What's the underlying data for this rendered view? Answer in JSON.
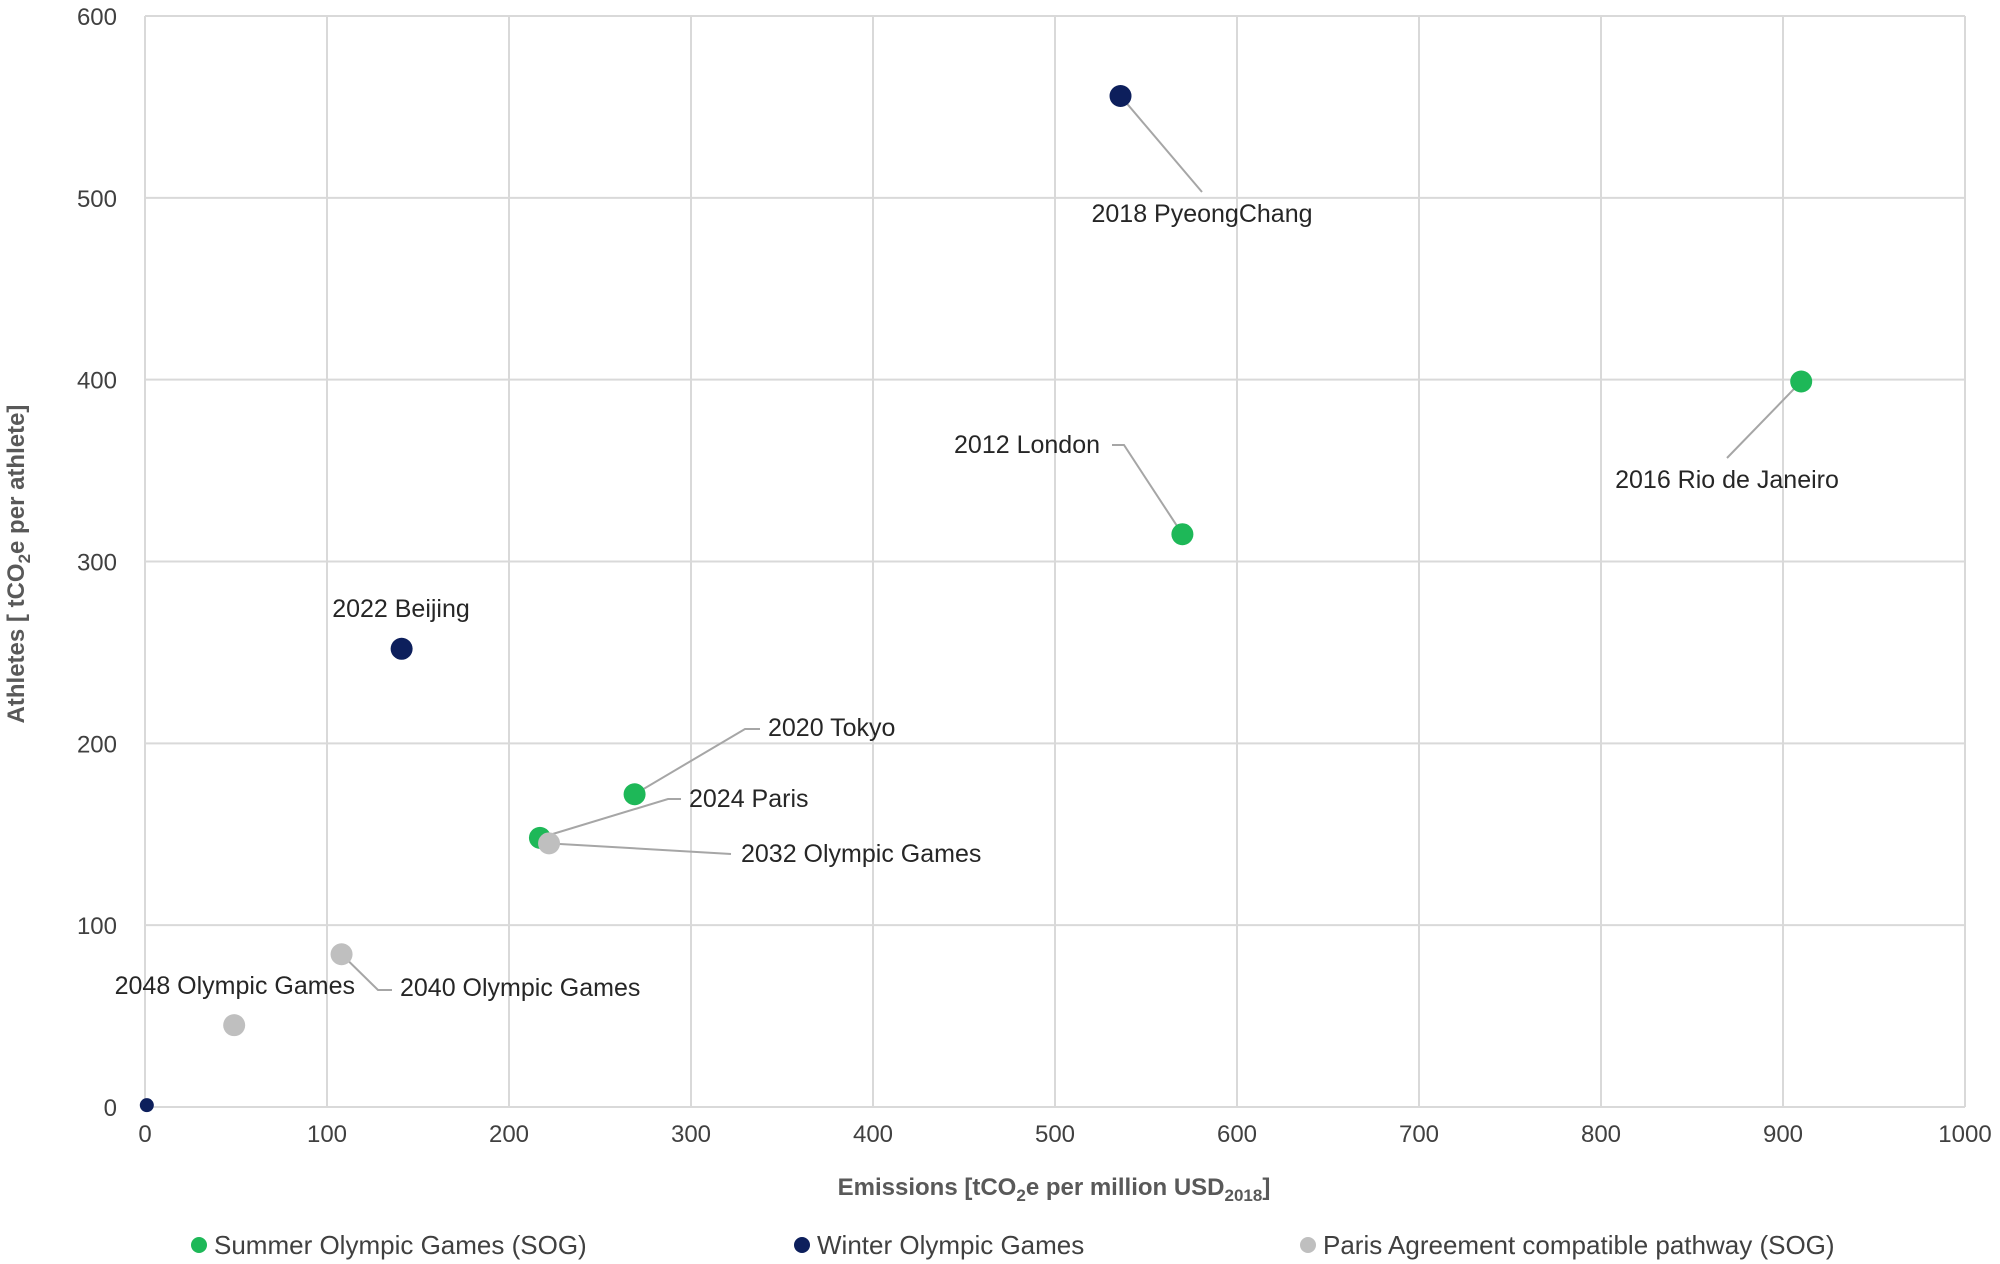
{
  "chart_data": {
    "type": "scatter",
    "title": "",
    "xlabel": {
      "prefix": "Emissions [tCO",
      "sub1": "2",
      "mid": "e per million USD",
      "sub2": "2018",
      "suffix": "]"
    },
    "ylabel": {
      "prefix": "Athletes [ tCO",
      "sub1": "2",
      "suffix": "e per athlete]"
    },
    "xlim": [
      0,
      1000
    ],
    "ylim": [
      0,
      600
    ],
    "xticks": [
      0,
      100,
      200,
      300,
      400,
      500,
      600,
      700,
      800,
      900,
      1000
    ],
    "yticks": [
      0,
      100,
      200,
      300,
      400,
      500,
      600
    ],
    "grid": true,
    "legend_position": "bottom",
    "series": [
      {
        "name": "Summer Olympic Games (SOG)",
        "color": "#1eb858",
        "points": [
          {
            "label": "2012 London",
            "x": 570,
            "y": 315
          },
          {
            "label": "2016 Rio de Janeiro",
            "x": 910,
            "y": 399
          },
          {
            "label": "2020 Tokyo",
            "x": 269,
            "y": 172
          },
          {
            "label": "2024 Paris",
            "x": 217,
            "y": 148
          }
        ]
      },
      {
        "name": "Winter Olympic Games",
        "color": "#0d1f5c",
        "points": [
          {
            "label": "2018 PyeongChang",
            "x": 536,
            "y": 556
          },
          {
            "label": "2022 Beijing",
            "x": 141,
            "y": 252
          },
          {
            "label": "",
            "x": 1,
            "y": 1
          }
        ]
      },
      {
        "name": "Paris Agreement compatible pathway (SOG)",
        "color": "#bfbfbf",
        "points": [
          {
            "label": "2032 Olympic Games",
            "x": 222,
            "y": 145
          },
          {
            "label": "2040 Olympic Games",
            "x": 108,
            "y": 84
          },
          {
            "label": "2048 Olympic Games",
            "x": 49,
            "y": 45
          }
        ]
      }
    ]
  }
}
